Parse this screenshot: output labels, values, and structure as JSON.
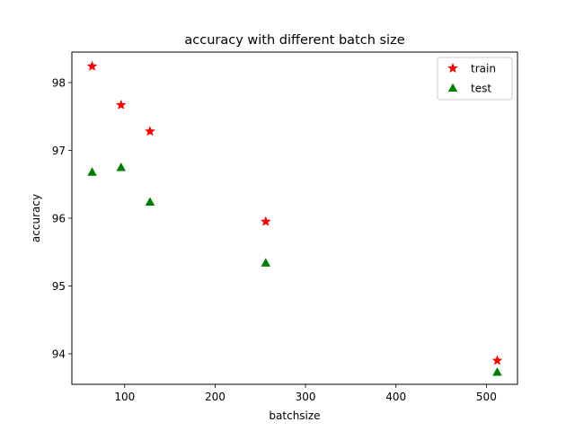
{
  "chart_data": {
    "type": "scatter",
    "title": "accuracy with different batch size",
    "xlabel": "batchsize",
    "ylabel": "accuracy",
    "xlim": [
      41.6,
      534.4
    ],
    "ylim": [
      93.55,
      98.45
    ],
    "xticks": [
      100,
      200,
      300,
      400,
      500
    ],
    "yticks": [
      94,
      95,
      96,
      97,
      98
    ],
    "grid": false,
    "legend_position": "top-right",
    "series": [
      {
        "name": "train",
        "marker": "star",
        "color": "#ff0000",
        "x": [
          64,
          96,
          128,
          256,
          512
        ],
        "y": [
          98.24,
          97.67,
          97.28,
          95.95,
          93.9
        ]
      },
      {
        "name": "test",
        "marker": "triangle",
        "color": "#008000",
        "x": [
          64,
          96,
          128,
          256,
          512
        ],
        "y": [
          96.68,
          96.75,
          96.24,
          95.34,
          93.73
        ]
      }
    ]
  }
}
